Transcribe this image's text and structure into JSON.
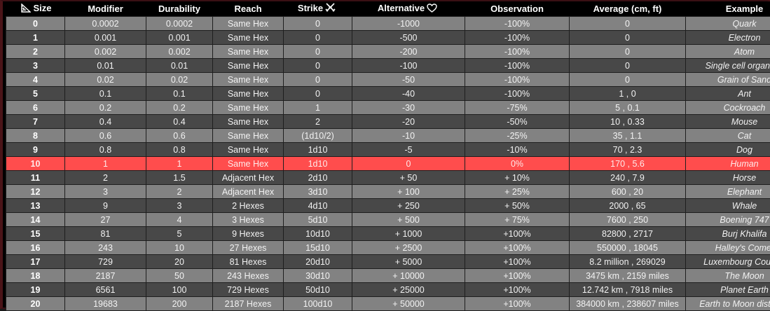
{
  "headers": {
    "size": "Size",
    "modifier": "Modifier",
    "durability": "Durability",
    "reach": "Reach",
    "strike": "Strike",
    "alternative": "Alternative",
    "observation": "Observation",
    "average": "Average (cm, ft)",
    "example": "Example"
  },
  "icons": {
    "size": "ruler-triangle-icon",
    "strike": "crossed-swords-icon",
    "alternative": "heart-outline-icon"
  },
  "colors": {
    "highlight_row": "#ff4d4d",
    "row_light": "#828282",
    "row_dark": "#484848"
  },
  "highlighted_size": "10",
  "rows": [
    {
      "size": "0",
      "modifier": "0.0002",
      "durability": "0.0002",
      "reach": "Same Hex",
      "strike": "0",
      "alternative": "-1000",
      "observation": "-100%",
      "average": "0",
      "example": "Quark"
    },
    {
      "size": "1",
      "modifier": "0.001",
      "durability": "0.001",
      "reach": "Same Hex",
      "strike": "0",
      "alternative": "-500",
      "observation": "-100%",
      "average": "0",
      "example": "Electron"
    },
    {
      "size": "2",
      "modifier": "0.002",
      "durability": "0.002",
      "reach": "Same Hex",
      "strike": "0",
      "alternative": "-200",
      "observation": "-100%",
      "average": "0",
      "example": "Atom"
    },
    {
      "size": "3",
      "modifier": "0.01",
      "durability": "0.01",
      "reach": "Same Hex",
      "strike": "0",
      "alternative": "-100",
      "observation": "-100%",
      "average": "0",
      "example": "Single cell organism"
    },
    {
      "size": "4",
      "modifier": "0.02",
      "durability": "0.02",
      "reach": "Same Hex",
      "strike": "0",
      "alternative": "-50",
      "observation": "-100%",
      "average": "0",
      "example": "Grain of Sand"
    },
    {
      "size": "5",
      "modifier": "0.1",
      "durability": "0.1",
      "reach": "Same Hex",
      "strike": "0",
      "alternative": "-40",
      "observation": "-100%",
      "average": "1 , 0",
      "example": "Ant"
    },
    {
      "size": "6",
      "modifier": "0.2",
      "durability": "0.2",
      "reach": "Same Hex",
      "strike": "1",
      "alternative": "-30",
      "observation": "-75%",
      "average": "5 , 0.1",
      "example": "Cockroach"
    },
    {
      "size": "7",
      "modifier": "0.4",
      "durability": "0.4",
      "reach": "Same Hex",
      "strike": "2",
      "alternative": "-20",
      "observation": "-50%",
      "average": "10 , 0.33",
      "example": "Mouse"
    },
    {
      "size": "8",
      "modifier": "0.6",
      "durability": "0.6",
      "reach": "Same Hex",
      "strike": "(1d10/2)",
      "alternative": "-10",
      "observation": "-25%",
      "average": "35 , 1.1",
      "example": "Cat"
    },
    {
      "size": "9",
      "modifier": "0.8",
      "durability": "0.8",
      "reach": "Same Hex",
      "strike": "1d10",
      "alternative": "-5",
      "observation": "-10%",
      "average": "70 , 2.3",
      "example": "Dog"
    },
    {
      "size": "10",
      "modifier": "1",
      "durability": "1",
      "reach": "Same Hex",
      "strike": "1d10",
      "alternative": "0",
      "observation": "0%",
      "average": "170 , 5.6",
      "example": "Human"
    },
    {
      "size": "11",
      "modifier": "2",
      "durability": "1.5",
      "reach": "Adjacent Hex",
      "strike": "2d10",
      "alternative": "+    50",
      "observation": "+ 10%",
      "average": "240 , 7.9",
      "example": "Horse"
    },
    {
      "size": "12",
      "modifier": "3",
      "durability": "2",
      "reach": "Adjacent Hex",
      "strike": "3d10",
      "alternative": "+   100",
      "observation": "+ 25%",
      "average": "600 , 20",
      "example": "Elephant"
    },
    {
      "size": "13",
      "modifier": "9",
      "durability": "3",
      "reach": "2 Hexes",
      "strike": "4d10",
      "alternative": "+   250",
      "observation": "+ 50%",
      "average": "2000 , 65",
      "example": "Whale"
    },
    {
      "size": "14",
      "modifier": "27",
      "durability": "4",
      "reach": "3 Hexes",
      "strike": "5d10",
      "alternative": "+   500",
      "observation": "+ 75%",
      "average": "7600 , 250",
      "example": "Boening 747"
    },
    {
      "size": "15",
      "modifier": "81",
      "durability": "5",
      "reach": "9 Hexes",
      "strike": "10d10",
      "alternative": "+  1000",
      "observation": "+100%",
      "average": "82800 , 2717",
      "example": "Burj Khalifa"
    },
    {
      "size": "16",
      "modifier": "243",
      "durability": "10",
      "reach": "27 Hexes",
      "strike": "15d10",
      "alternative": "+  2500",
      "observation": "+100%",
      "average": "550000 , 18045",
      "example": "Halley's Comet"
    },
    {
      "size": "17",
      "modifier": "729",
      "durability": "20",
      "reach": "81 Hexes",
      "strike": "20d10",
      "alternative": "+  5000",
      "observation": "+100%",
      "average": "8.2  million , 269029",
      "example": "Luxembourg Country"
    },
    {
      "size": "18",
      "modifier": "2187",
      "durability": "50",
      "reach": "243 Hexes",
      "strike": "30d10",
      "alternative": "+ 10000",
      "observation": "+100%",
      "average": "3475 km , 2159 miles",
      "example": "The Moon"
    },
    {
      "size": "19",
      "modifier": "6561",
      "durability": "100",
      "reach": "729 Hexes",
      "strike": "50d10",
      "alternative": "+ 25000",
      "observation": "+100%",
      "average": "12.742 km , 7918 miles",
      "example": "Planet Earth"
    },
    {
      "size": "20",
      "modifier": "19683",
      "durability": "200",
      "reach": "2187 Hexes",
      "strike": "100d10",
      "alternative": "+ 50000",
      "observation": "+100%",
      "average": "384000 km , 238607 miles",
      "example": "Earth to Moon distance"
    }
  ]
}
